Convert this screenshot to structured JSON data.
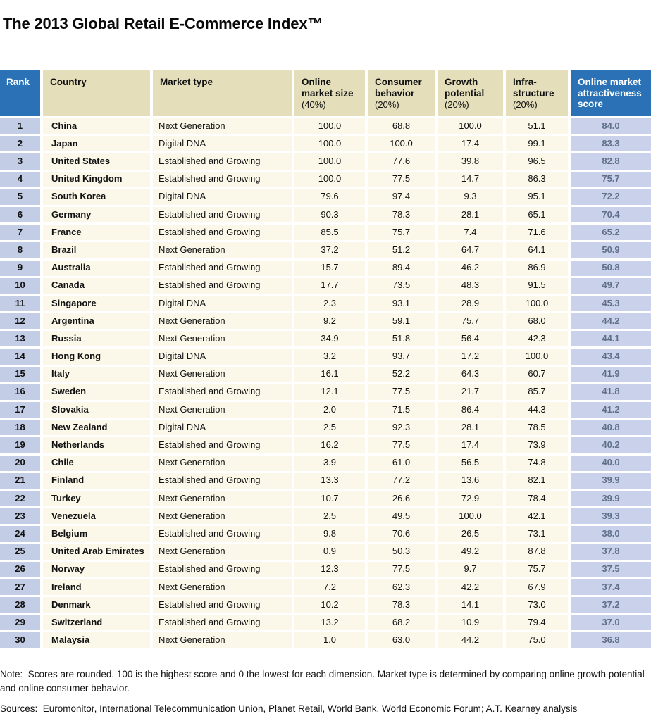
{
  "title": "The 2013 Global Retail E-Commerce Index™",
  "colors": {
    "header_blue": "#2a72b5",
    "header_tan": "#e4debb",
    "row_cream": "#fbf8ea",
    "rank_periwinkle": "#c4cde6",
    "score_periwinkle": "#c9d2ea",
    "score_text": "#5f6f8b"
  },
  "table": {
    "columns": [
      {
        "label": "Rank"
      },
      {
        "label": "Country"
      },
      {
        "label": "Market type"
      },
      {
        "label": "Online\nmarket size",
        "weight": "(40%)"
      },
      {
        "label": "Consumer\nbehavior",
        "weight": "(20%)"
      },
      {
        "label": "Growth\npotential",
        "weight": "(20%)"
      },
      {
        "label": "Infra-\nstructure",
        "weight": "(20%)"
      },
      {
        "label": "Online market\nattractiveness\nscore"
      }
    ],
    "rows": [
      {
        "rank": "1",
        "country": "China",
        "market_type": "Next Generation",
        "online_market_size": "100.0",
        "consumer_behavior": "68.8",
        "growth_potential": "100.0",
        "infrastructure": "51.1",
        "score": "84.0"
      },
      {
        "rank": "2",
        "country": "Japan",
        "market_type": "Digital DNA",
        "online_market_size": "100.0",
        "consumer_behavior": "100.0",
        "growth_potential": "17.4",
        "infrastructure": "99.1",
        "score": "83.3"
      },
      {
        "rank": "3",
        "country": "United States",
        "market_type": "Established and Growing",
        "online_market_size": "100.0",
        "consumer_behavior": "77.6",
        "growth_potential": "39.8",
        "infrastructure": "96.5",
        "score": "82.8"
      },
      {
        "rank": "4",
        "country": "United Kingdom",
        "market_type": "Established and Growing",
        "online_market_size": "100.0",
        "consumer_behavior": "77.5",
        "growth_potential": "14.7",
        "infrastructure": "86.3",
        "score": "75.7"
      },
      {
        "rank": "5",
        "country": "South Korea",
        "market_type": "Digital DNA",
        "online_market_size": "79.6",
        "consumer_behavior": "97.4",
        "growth_potential": "9.3",
        "infrastructure": "95.1",
        "score": "72.2"
      },
      {
        "rank": "6",
        "country": "Germany",
        "market_type": "Established and Growing",
        "online_market_size": "90.3",
        "consumer_behavior": "78.3",
        "growth_potential": "28.1",
        "infrastructure": "65.1",
        "score": "70.4"
      },
      {
        "rank": "7",
        "country": "France",
        "market_type": "Established and Growing",
        "online_market_size": "85.5",
        "consumer_behavior": "75.7",
        "growth_potential": "7.4",
        "infrastructure": "71.6",
        "score": "65.2"
      },
      {
        "rank": "8",
        "country": "Brazil",
        "market_type": "Next Generation",
        "online_market_size": "37.2",
        "consumer_behavior": "51.2",
        "growth_potential": "64.7",
        "infrastructure": "64.1",
        "score": "50.9"
      },
      {
        "rank": "9",
        "country": "Australia",
        "market_type": "Established and Growing",
        "online_market_size": "15.7",
        "consumer_behavior": "89.4",
        "growth_potential": "46.2",
        "infrastructure": "86.9",
        "score": "50.8"
      },
      {
        "rank": "10",
        "country": "Canada",
        "market_type": "Established and Growing",
        "online_market_size": "17.7",
        "consumer_behavior": "73.5",
        "growth_potential": "48.3",
        "infrastructure": "91.5",
        "score": "49.7"
      },
      {
        "rank": "11",
        "country": "Singapore",
        "market_type": "Digital DNA",
        "online_market_size": "2.3",
        "consumer_behavior": "93.1",
        "growth_potential": "28.9",
        "infrastructure": "100.0",
        "score": "45.3"
      },
      {
        "rank": "12",
        "country": "Argentina",
        "market_type": "Next Generation",
        "online_market_size": "9.2",
        "consumer_behavior": "59.1",
        "growth_potential": "75.7",
        "infrastructure": "68.0",
        "score": "44.2"
      },
      {
        "rank": "13",
        "country": "Russia",
        "market_type": "Next Generation",
        "online_market_size": "34.9",
        "consumer_behavior": "51.8",
        "growth_potential": "56.4",
        "infrastructure": "42.3",
        "score": "44.1"
      },
      {
        "rank": "14",
        "country": "Hong Kong",
        "market_type": "Digital DNA",
        "online_market_size": "3.2",
        "consumer_behavior": "93.7",
        "growth_potential": "17.2",
        "infrastructure": "100.0",
        "score": "43.4"
      },
      {
        "rank": "15",
        "country": "Italy",
        "market_type": "Next Generation",
        "online_market_size": "16.1",
        "consumer_behavior": "52.2",
        "growth_potential": "64.3",
        "infrastructure": "60.7",
        "score": "41.9"
      },
      {
        "rank": "16",
        "country": "Sweden",
        "market_type": "Established and Growing",
        "online_market_size": "12.1",
        "consumer_behavior": "77.5",
        "growth_potential": "21.7",
        "infrastructure": "85.7",
        "score": "41.8"
      },
      {
        "rank": "17",
        "country": "Slovakia",
        "market_type": "Next Generation",
        "online_market_size": "2.0",
        "consumer_behavior": "71.5",
        "growth_potential": "86.4",
        "infrastructure": "44.3",
        "score": "41.2"
      },
      {
        "rank": "18",
        "country": "New Zealand",
        "market_type": "Digital DNA",
        "online_market_size": "2.5",
        "consumer_behavior": "92.3",
        "growth_potential": "28.1",
        "infrastructure": "78.5",
        "score": "40.8"
      },
      {
        "rank": "19",
        "country": "Netherlands",
        "market_type": "Established and Growing",
        "online_market_size": "16.2",
        "consumer_behavior": "77.5",
        "growth_potential": "17.4",
        "infrastructure": "73.9",
        "score": "40.2"
      },
      {
        "rank": "20",
        "country": "Chile",
        "market_type": "Next Generation",
        "online_market_size": "3.9",
        "consumer_behavior": "61.0",
        "growth_potential": "56.5",
        "infrastructure": "74.8",
        "score": "40.0"
      },
      {
        "rank": "21",
        "country": "Finland",
        "market_type": "Established and Growing",
        "online_market_size": "13.3",
        "consumer_behavior": "77.2",
        "growth_potential": "13.6",
        "infrastructure": "82.1",
        "score": "39.9"
      },
      {
        "rank": "22",
        "country": "Turkey",
        "market_type": "Next Generation",
        "online_market_size": "10.7",
        "consumer_behavior": "26.6",
        "growth_potential": "72.9",
        "infrastructure": "78.4",
        "score": "39.9"
      },
      {
        "rank": "23",
        "country": "Venezuela",
        "market_type": "Next Generation",
        "online_market_size": "2.5",
        "consumer_behavior": "49.5",
        "growth_potential": "100.0",
        "infrastructure": "42.1",
        "score": "39.3"
      },
      {
        "rank": "24",
        "country": "Belgium",
        "market_type": "Established and Growing",
        "online_market_size": "9.8",
        "consumer_behavior": "70.6",
        "growth_potential": "26.5",
        "infrastructure": "73.1",
        "score": "38.0"
      },
      {
        "rank": "25",
        "country": "United Arab Emirates",
        "market_type": "Next Generation",
        "online_market_size": "0.9",
        "consumer_behavior": "50.3",
        "growth_potential": "49.2",
        "infrastructure": "87.8",
        "score": "37.8"
      },
      {
        "rank": "26",
        "country": "Norway",
        "market_type": "Established and Growing",
        "online_market_size": "12.3",
        "consumer_behavior": "77.5",
        "growth_potential": "9.7",
        "infrastructure": "75.7",
        "score": "37.5"
      },
      {
        "rank": "27",
        "country": "Ireland",
        "market_type": "Next Generation",
        "online_market_size": "7.2",
        "consumer_behavior": "62.3",
        "growth_potential": "42.2",
        "infrastructure": "67.9",
        "score": "37.4"
      },
      {
        "rank": "28",
        "country": "Denmark",
        "market_type": "Established and Growing",
        "online_market_size": "10.2",
        "consumer_behavior": "78.3",
        "growth_potential": "14.1",
        "infrastructure": "73.0",
        "score": "37.2"
      },
      {
        "rank": "29",
        "country": "Switzerland",
        "market_type": "Established and Growing",
        "online_market_size": "13.2",
        "consumer_behavior": "68.2",
        "growth_potential": "10.9",
        "infrastructure": "79.4",
        "score": "37.0"
      },
      {
        "rank": "30",
        "country": "Malaysia",
        "market_type": "Next Generation",
        "online_market_size": "1.0",
        "consumer_behavior": "63.0",
        "growth_potential": "44.2",
        "infrastructure": "75.0",
        "score": "36.8"
      }
    ]
  },
  "footer": {
    "note": "Note:  Scores are rounded. 100 is the highest score and 0 the lowest for each dimension. Market type is determined by comparing online growth potential and online consumer behavior.",
    "sources": "Sources:  Euromonitor, International Telecommunication Union, Planet Retail, World Bank, World Economic Forum; A.T. Kearney analysis"
  }
}
